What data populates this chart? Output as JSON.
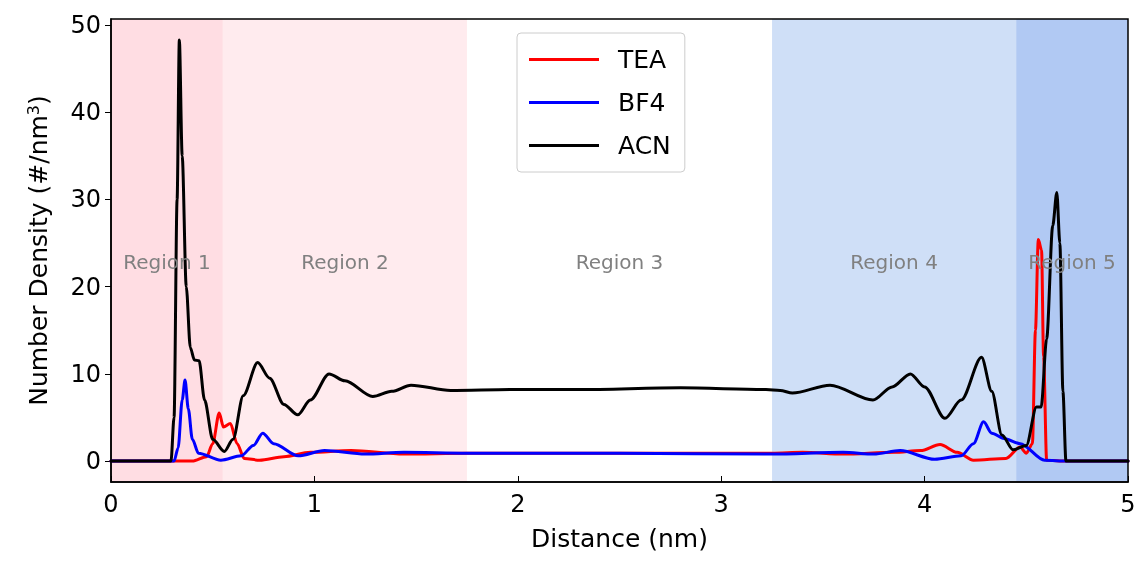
{
  "chart_data": {
    "type": "line",
    "xlabel": "Distance (nm)",
    "ylabel": "Number Density (#/nm$^{3}$)",
    "xlim": [
      0,
      5
    ],
    "xticks": [
      0,
      1,
      2,
      3,
      4,
      5
    ],
    "ylim": [
      -2.4,
      50.7
    ],
    "yticks": [
      0,
      10,
      20,
      30,
      40,
      50
    ],
    "grid": false,
    "legend": "top",
    "marker": "none",
    "line_style": "solid",
    "annotations": [
      "Region 3"
    ],
    "bands": [
      {
        "axis": "x",
        "from": 0,
        "to": 0.55,
        "label": "Region 1",
        "color": "#ffdde3"
      },
      {
        "axis": "x",
        "from": 0.55,
        "to": 1.75,
        "label": "Region 2",
        "color": "#ffebee"
      },
      {
        "axis": "x",
        "from": 3.25,
        "to": 4.45,
        "label": "Region 4",
        "color": "#cfdff7"
      },
      {
        "axis": "x",
        "from": 4.45,
        "to": 5,
        "label": "Region 5",
        "color": "#b1c9f3"
      }
    ],
    "series": [
      {
        "name": "TEA",
        "color": "#ff0000",
        "x": [
          0,
          0.4,
          0.47,
          0.5,
          0.532,
          0.553,
          0.587,
          0.62,
          0.655,
          0.73,
          0.85,
          0.98,
          1.18,
          1.44,
          1.75,
          2.5,
          3.25,
          3.4,
          3.6,
          3.85,
          3.98,
          4.076,
          4.16,
          4.24,
          4.4,
          4.469,
          4.5,
          4.53,
          4.545,
          4.559,
          4.575,
          4.585,
          4.6,
          4.7,
          5
        ],
        "values": [
          0,
          0,
          0.5,
          2.0,
          5.5,
          3.9,
          4.3,
          2.0,
          0.3,
          0.1,
          0.5,
          1.0,
          1.2,
          0.8,
          0.9,
          0.9,
          0.9,
          1.0,
          0.8,
          1.0,
          1.2,
          1.9,
          1.0,
          0.1,
          0.3,
          1.6,
          0.9,
          2.0,
          15,
          25.4,
          24.2,
          12,
          0.1,
          0,
          0
        ]
      },
      {
        "name": "BF4",
        "color": "#0000ff",
        "x": [
          0,
          0.31,
          0.33,
          0.35,
          0.364,
          0.38,
          0.4,
          0.43,
          0.54,
          0.64,
          0.7,
          0.746,
          0.8,
          0.92,
          1.05,
          1.25,
          1.44,
          1.75,
          2.5,
          3.25,
          3.6,
          3.75,
          3.88,
          4.05,
          4.18,
          4.24,
          4.29,
          4.33,
          4.39,
          4.47,
          4.59,
          4.7,
          5
        ],
        "values": [
          0,
          0,
          1.5,
          7,
          9.3,
          6,
          2.5,
          0.9,
          0.1,
          0.6,
          1.8,
          3.2,
          2.0,
          0.6,
          1.2,
          0.8,
          1.0,
          0.9,
          0.9,
          0.8,
          1.0,
          0.8,
          1.2,
          0.2,
          0.6,
          2.0,
          4.5,
          3.2,
          2.6,
          2.0,
          0.1,
          0,
          0
        ]
      },
      {
        "name": "ACN",
        "color": "#000000",
        "x": [
          0,
          0.295,
          0.31,
          0.325,
          0.336,
          0.35,
          0.37,
          0.39,
          0.41,
          0.433,
          0.46,
          0.5,
          0.557,
          0.6,
          0.65,
          0.721,
          0.78,
          0.85,
          0.918,
          0.98,
          1.072,
          1.15,
          1.287,
          1.38,
          1.475,
          1.67,
          1.97,
          2.3,
          2.8,
          3.22,
          3.29,
          3.35,
          3.535,
          3.746,
          3.84,
          3.93,
          4.0,
          4.1,
          4.18,
          4.28,
          4.33,
          4.38,
          4.435,
          4.5,
          4.55,
          4.573,
          4.6,
          4.63,
          4.65,
          4.665,
          4.68,
          4.695,
          5
        ],
        "values": [
          0,
          0,
          5,
          30,
          48.3,
          35,
          20,
          13,
          11.6,
          11.5,
          7,
          2.5,
          1.1,
          2.5,
          7.5,
          11.3,
          9.5,
          6.5,
          5.3,
          7,
          10.0,
          9.2,
          7.4,
          8.0,
          8.7,
          8.1,
          8.2,
          8.2,
          8.4,
          8.2,
          8.1,
          7.8,
          8.7,
          7.0,
          8.5,
          10.0,
          8.5,
          4.9,
          7,
          11.9,
          8,
          3,
          1.3,
          1.8,
          6.2,
          6.2,
          14,
          27,
          30.8,
          25,
          8,
          0,
          0
        ]
      }
    ]
  }
}
